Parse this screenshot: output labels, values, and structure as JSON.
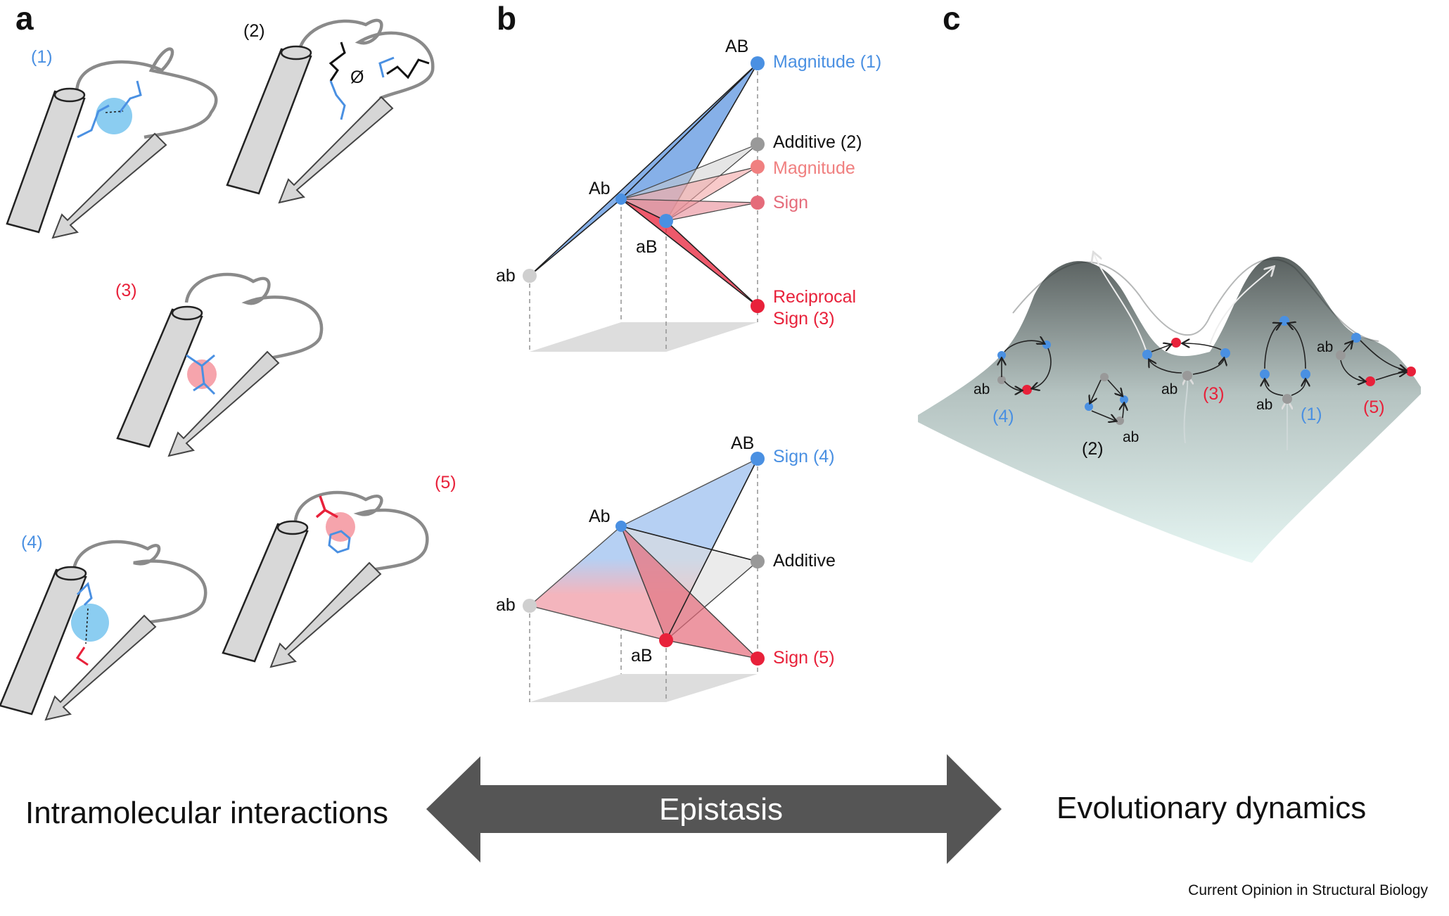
{
  "panels": {
    "a": {
      "letter": "a",
      "structures": [
        {
          "label": "(1)",
          "color": "#4a90e2"
        },
        {
          "label": "(2)",
          "color": "#111111",
          "null_symbol": "Ø"
        },
        {
          "label": "(3)",
          "color": "#e8213a"
        },
        {
          "label": "(4)",
          "color": "#4a90e2"
        },
        {
          "label": "(5)",
          "color": "#e8213a"
        }
      ]
    },
    "b": {
      "letter": "b",
      "top": {
        "vertices": {
          "AB": "AB",
          "Ab": "Ab",
          "aB": "aB",
          "ab": "ab"
        },
        "endpoints": [
          {
            "text": "Magnitude (1)",
            "color": "#4a90e2"
          },
          {
            "text": "Additive (2)",
            "color": "#111111"
          },
          {
            "text": "Magnitude",
            "color": "#f08080"
          },
          {
            "text": "Sign",
            "color": "#e56b7a"
          },
          {
            "text": "Reciprocal",
            "color": "#e8213a"
          },
          {
            "text": "Sign (3)",
            "color": "#e8213a"
          }
        ]
      },
      "bottom": {
        "vertices": {
          "AB": "AB",
          "Ab": "Ab",
          "aB": "aB",
          "ab": "ab"
        },
        "endpoints": [
          {
            "text": "Sign (4)",
            "color": "#4a90e2"
          },
          {
            "text": "Additive",
            "color": "#111111"
          },
          {
            "text": "Sign (5)",
            "color": "#e8213a"
          }
        ]
      }
    },
    "c": {
      "letter": "c",
      "labels": {
        "n4": "(4)",
        "n2": "(2)",
        "n3": "(3)",
        "n1": "(1)",
        "n5": "(5)",
        "ab": "ab"
      }
    }
  },
  "bottom": {
    "left_label": "Intramolecular interactions",
    "arrow_label": "Epistasis",
    "right_label": "Evolutionary dynamics",
    "arrow_color": "#555555"
  },
  "credit": "Current Opinion in Structural Biology",
  "colors": {
    "blue": "#4a90e2",
    "red": "#e8213a",
    "grey": "#8a8a8a"
  }
}
